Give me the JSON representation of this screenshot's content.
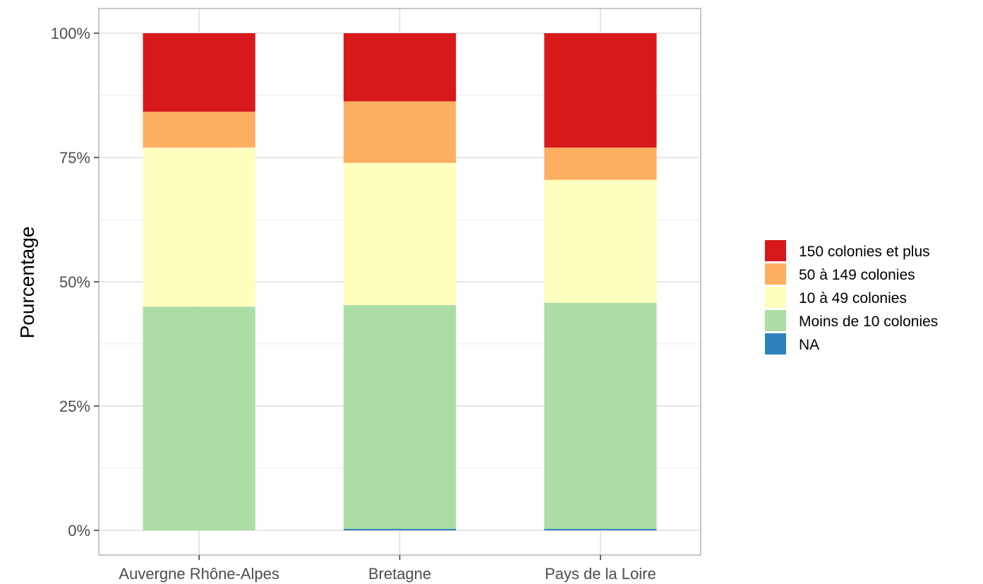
{
  "chart_data": {
    "type": "bar",
    "stacked": true,
    "percent": true,
    "title": "",
    "xlabel": "",
    "ylabel": "Pourcentage",
    "ylim": [
      0,
      1
    ],
    "yticks": [
      {
        "value": 0,
        "label": "0%"
      },
      {
        "value": 0.25,
        "label": "25%"
      },
      {
        "value": 0.5,
        "label": "50%"
      },
      {
        "value": 0.75,
        "label": "75%"
      },
      {
        "value": 1,
        "label": "100%"
      }
    ],
    "grid": true,
    "legend_position": "right",
    "categories": [
      "Auvergne Rhône-Alpes",
      "Bretagne",
      "Pays de la Loire"
    ],
    "series": [
      {
        "name": "NA",
        "color": "#2B83BA",
        "values": [
          0.0,
          0.003,
          0.003
        ]
      },
      {
        "name": "Moins de 10 colonies",
        "color": "#ABDDA4",
        "values": [
          0.45,
          0.45,
          0.455
        ]
      },
      {
        "name": "10 à 49 colonies",
        "color": "#FFFFBF",
        "values": [
          0.32,
          0.286,
          0.247
        ]
      },
      {
        "name": "50 à 149 colonies",
        "color": "#FDAE61",
        "values": [
          0.072,
          0.124,
          0.065
        ]
      },
      {
        "name": "150 colonies et plus",
        "color": "#D7191C",
        "values": [
          0.158,
          0.137,
          0.23
        ]
      }
    ],
    "legend_order": [
      "150 colonies et plus",
      "50 à 149 colonies",
      "10 à 49 colonies",
      "Moins de 10 colonies",
      "NA"
    ]
  }
}
